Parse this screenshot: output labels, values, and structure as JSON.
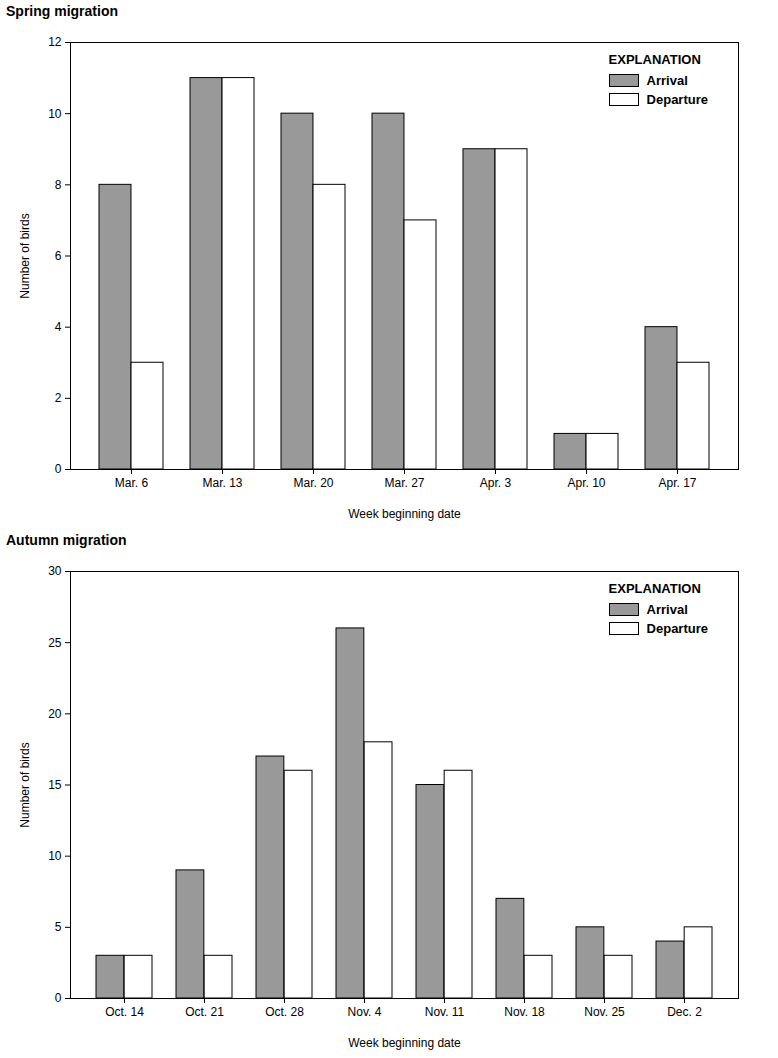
{
  "chart_data": [
    {
      "type": "bar",
      "title": "Spring migration",
      "x_label": "Week beginning date",
      "y_label": "Number of birds",
      "categories": [
        "Mar. 6",
        "Mar. 13",
        "Mar. 20",
        "Mar. 27",
        "Apr. 3",
        "Apr. 10",
        "Apr. 17"
      ],
      "series": [
        {
          "name": "Arrival",
          "color": "#999999",
          "values": [
            8,
            11,
            10,
            10,
            9,
            1,
            4
          ]
        },
        {
          "name": "Departure",
          "color": "#ffffff",
          "values": [
            3,
            11,
            8,
            7,
            9,
            1,
            3
          ]
        }
      ],
      "ylim": [
        0,
        12
      ],
      "yticks": [
        0,
        2,
        4,
        6,
        8,
        10,
        12
      ],
      "legend": "top-right",
      "legend_title": "EXPLANATION",
      "grid": false
    },
    {
      "type": "bar",
      "title": "Autumn migration",
      "x_label": "Week beginning date",
      "y_label": "Number of birds",
      "categories": [
        "Oct. 14",
        "Oct. 21",
        "Oct. 28",
        "Nov. 4",
        "Nov. 11",
        "Nov. 18",
        "Nov. 25",
        "Dec. 2"
      ],
      "series": [
        {
          "name": "Arrival",
          "color": "#999999",
          "values": [
            3,
            9,
            17,
            26,
            15,
            7,
            5,
            4
          ]
        },
        {
          "name": "Departure",
          "color": "#ffffff",
          "values": [
            3,
            3,
            16,
            18,
            16,
            3,
            3,
            5
          ]
        }
      ],
      "ylim": [
        0,
        30
      ],
      "yticks": [
        0,
        5,
        10,
        15,
        20,
        25,
        30
      ],
      "legend": "top-right",
      "legend_title": "EXPLANATION",
      "grid": false
    }
  ]
}
